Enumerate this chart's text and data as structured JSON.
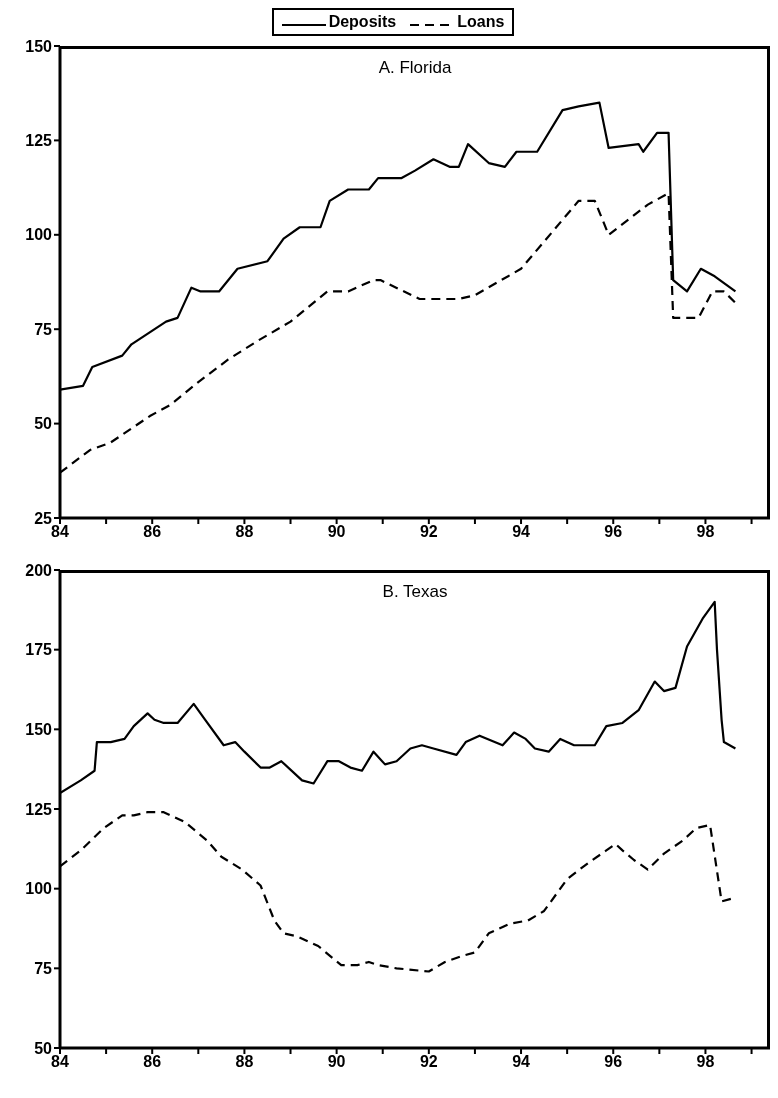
{
  "chart_data": [
    {
      "type": "line",
      "title": "A. Florida",
      "legend": "top",
      "marker": "none",
      "xlim": [
        1984,
        1999.4
      ],
      "ylim": [
        25,
        150
      ],
      "xticks": [
        {
          "value": 1984,
          "label": "84"
        },
        {
          "value": 1985,
          "label": null
        },
        {
          "value": 1986,
          "label": "86"
        },
        {
          "value": 1987,
          "label": null
        },
        {
          "value": 1988,
          "label": "88"
        },
        {
          "value": 1989,
          "label": null
        },
        {
          "value": 1990,
          "label": "90"
        },
        {
          "value": 1991,
          "label": null
        },
        {
          "value": 1992,
          "label": "92"
        },
        {
          "value": 1993,
          "label": null
        },
        {
          "value": 1994,
          "label": "94"
        },
        {
          "value": 1995,
          "label": null
        },
        {
          "value": 1996,
          "label": "96"
        },
        {
          "value": 1997,
          "label": null
        },
        {
          "value": 1998,
          "label": "98"
        },
        {
          "value": 1999,
          "label": null
        }
      ],
      "yticks": [
        25,
        50,
        75,
        100,
        125,
        150
      ],
      "series": [
        {
          "name": "Deposits",
          "color": "#000000",
          "line_style": "solid",
          "x": [
            1984.0,
            1984.5,
            1984.7,
            1985.35,
            1985.55,
            1986.3,
            1986.55,
            1986.85,
            1987.05,
            1987.45,
            1987.85,
            1988.5,
            1988.85,
            1989.2,
            1989.65,
            1989.85,
            1990.25,
            1990.7,
            1990.9,
            1991.4,
            1991.7,
            1992.1,
            1992.45,
            1992.65,
            1992.85,
            1993.3,
            1993.65,
            1993.9,
            1994.35,
            1994.9,
            1995.25,
            1995.7,
            1995.9,
            1996.55,
            1996.65,
            1996.95,
            1997.2,
            1997.3,
            1997.6,
            1997.9,
            1998.2,
            1998.65
          ],
          "values": [
            59,
            60,
            65,
            68,
            71,
            77,
            78,
            86,
            85,
            85,
            91,
            93,
            99,
            102,
            102,
            109,
            112,
            112,
            115,
            115,
            117,
            120,
            118,
            118,
            124,
            119,
            118,
            122,
            122,
            133,
            134,
            135,
            123,
            124,
            122,
            127,
            127,
            88,
            85,
            91,
            89,
            85
          ]
        },
        {
          "name": "Loans",
          "color": "#000000",
          "line_style": "dashed",
          "x": [
            1984.0,
            1984.65,
            1985.1,
            1985.95,
            1986.4,
            1987.0,
            1987.65,
            1988.3,
            1989.0,
            1989.8,
            1990.25,
            1990.8,
            1990.95,
            1991.8,
            1992.65,
            1993.0,
            1994.0,
            1995.25,
            1995.6,
            1995.9,
            1996.75,
            1997.2,
            1997.3,
            1997.85,
            1998.15,
            1998.4,
            1998.65
          ],
          "values": [
            37,
            43,
            45,
            52,
            55,
            61,
            67,
            72,
            77,
            85,
            85,
            88,
            88,
            83,
            83,
            84,
            91,
            109,
            109,
            100,
            108,
            111,
            78,
            78,
            85,
            85,
            82
          ]
        }
      ]
    },
    {
      "type": "line",
      "title": "B. Texas",
      "marker": "none",
      "xlim": [
        1984,
        1999.4
      ],
      "ylim": [
        50,
        200
      ],
      "xticks": [
        {
          "value": 1984,
          "label": "84"
        },
        {
          "value": 1985,
          "label": null
        },
        {
          "value": 1986,
          "label": "86"
        },
        {
          "value": 1987,
          "label": null
        },
        {
          "value": 1988,
          "label": "88"
        },
        {
          "value": 1989,
          "label": null
        },
        {
          "value": 1990,
          "label": "90"
        },
        {
          "value": 1991,
          "label": null
        },
        {
          "value": 1992,
          "label": "92"
        },
        {
          "value": 1993,
          "label": null
        },
        {
          "value": 1994,
          "label": "94"
        },
        {
          "value": 1995,
          "label": null
        },
        {
          "value": 1996,
          "label": "96"
        },
        {
          "value": 1997,
          "label": null
        },
        {
          "value": 1998,
          "label": "98"
        },
        {
          "value": 1999,
          "label": null
        }
      ],
      "yticks": [
        50,
        75,
        100,
        125,
        150,
        175,
        200
      ],
      "series": [
        {
          "color": "#000000",
          "line_style": "solid",
          "x": [
            1984.0,
            1984.45,
            1984.75,
            1984.8,
            1985.1,
            1985.4,
            1985.6,
            1985.9,
            1986.05,
            1986.25,
            1986.55,
            1986.9,
            1987.15,
            1987.55,
            1987.8,
            1988.0,
            1988.35,
            1988.55,
            1988.8,
            1989.25,
            1989.5,
            1989.8,
            1990.05,
            1990.3,
            1990.55,
            1990.8,
            1991.05,
            1991.3,
            1991.6,
            1991.85,
            1992.1,
            1992.6,
            1992.8,
            1993.1,
            1993.6,
            1993.85,
            1994.1,
            1994.3,
            1994.6,
            1994.85,
            1995.15,
            1995.6,
            1995.85,
            1996.2,
            1996.55,
            1996.9,
            1997.1,
            1997.35,
            1997.6,
            1997.95,
            1998.2,
            1998.25,
            1998.35,
            1998.4,
            1998.65
          ],
          "values": [
            130,
            134,
            137,
            146,
            146,
            147,
            151,
            155,
            153,
            152,
            152,
            158,
            153,
            145,
            146,
            143,
            138,
            138,
            140,
            134,
            133,
            140,
            140,
            138,
            137,
            143,
            139,
            140,
            144,
            145,
            144,
            142,
            146,
            148,
            145,
            149,
            147,
            144,
            143,
            147,
            145,
            145,
            151,
            152,
            156,
            165,
            162,
            163,
            176,
            185,
            190,
            175,
            153,
            146,
            144
          ]
        },
        {
          "color": "#000000",
          "line_style": "dashed",
          "x": [
            1984.0,
            1984.45,
            1984.95,
            1985.35,
            1985.6,
            1985.9,
            1986.25,
            1986.7,
            1987.2,
            1987.5,
            1987.95,
            1988.35,
            1988.65,
            1988.85,
            1989.15,
            1989.6,
            1990.1,
            1990.45,
            1990.7,
            1990.9,
            1991.3,
            1992.0,
            1992.35,
            1992.75,
            1993.0,
            1993.3,
            1993.75,
            1994.15,
            1994.5,
            1995.0,
            1995.45,
            1995.85,
            1996.05,
            1996.2,
            1996.45,
            1996.75,
            1997.1,
            1997.5,
            1997.8,
            1998.1,
            1998.35,
            1998.6
          ],
          "values": [
            107,
            112,
            119,
            123,
            123,
            124,
            124,
            121,
            115,
            110,
            106,
            101,
            90,
            86,
            85,
            82,
            76,
            76,
            77,
            76,
            75,
            74,
            77,
            79,
            80,
            86,
            89,
            90,
            93,
            103,
            108,
            112,
            114,
            112,
            109,
            106,
            111,
            115,
            119,
            120,
            96,
            97
          ]
        }
      ]
    }
  ]
}
